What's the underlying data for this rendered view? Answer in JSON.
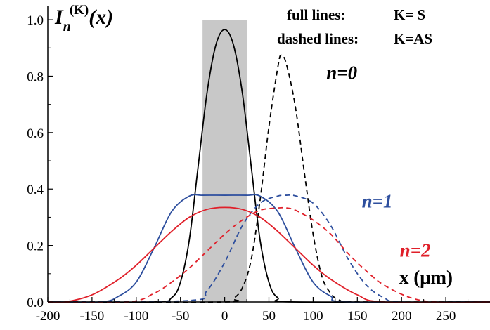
{
  "chart_data": {
    "type": "line",
    "ylabel": {
      "main": "I",
      "sub": "n",
      "sup": "(K)",
      "arg": "(x)"
    },
    "xlabel": "x (μm)",
    "xlim": [
      -200,
      300
    ],
    "ylim": [
      0,
      1.05
    ],
    "xticks": [
      -200,
      -150,
      -100,
      -50,
      0,
      50,
      100,
      150,
      200,
      250
    ],
    "xtick_labels": [
      "-200",
      "-150",
      "-100",
      "-50",
      "0",
      "50",
      "100",
      "150",
      "200",
      "250"
    ],
    "yticks": [
      0,
      0.2,
      0.4,
      0.6,
      0.8,
      1.0
    ],
    "ytick_labels": [
      "0.0",
      "0.2",
      "0.4",
      "0.6",
      "0.8",
      "1.0"
    ],
    "legend": {
      "full_label": "full lines:",
      "full_value": "K= S",
      "dashed_label": "dashed lines:",
      "dashed_value": "K=AS"
    },
    "shaded_region": {
      "x": [
        -25,
        25
      ],
      "color": "#c8c8c8"
    },
    "annotations": [
      {
        "id": "n0",
        "text": "n=0",
        "x": 115,
        "y": 0.79,
        "color": "#000000"
      },
      {
        "id": "n1",
        "text": "n=1",
        "x": 155,
        "y": 0.335,
        "color": "#2e4f9e"
      },
      {
        "id": "n2",
        "text": "n=2",
        "x": 198,
        "y": 0.16,
        "color": "#e0202a"
      }
    ],
    "series": [
      {
        "id": "n0-S",
        "dash": false,
        "color": "#000000",
        "x": [
          -80,
          -60,
          -50,
          -40,
          -30,
          -20,
          -10,
          0,
          10,
          20,
          30,
          40,
          50,
          60,
          80
        ],
        "y": [
          0.0,
          0.015,
          0.07,
          0.22,
          0.48,
          0.74,
          0.91,
          0.965,
          0.91,
          0.74,
          0.48,
          0.22,
          0.07,
          0.015,
          0.0
        ]
      },
      {
        "id": "n0-AS",
        "dash": true,
        "color": "#000000",
        "x": [
          0,
          10,
          20,
          30,
          40,
          50,
          60,
          64,
          70,
          80,
          90,
          100,
          110,
          120,
          130,
          150
        ],
        "y": [
          0.0,
          0.012,
          0.05,
          0.15,
          0.36,
          0.62,
          0.83,
          0.875,
          0.84,
          0.69,
          0.46,
          0.24,
          0.09,
          0.03,
          0.006,
          0.0
        ]
      },
      {
        "id": "n1-S",
        "dash": false,
        "color": "#2e4f9e",
        "x": [
          -140,
          -120,
          -100,
          -80,
          -60,
          -40,
          -25,
          0,
          25,
          40,
          60,
          80,
          100,
          120,
          140
        ],
        "y": [
          0.0,
          0.02,
          0.07,
          0.19,
          0.32,
          0.375,
          0.378,
          0.378,
          0.378,
          0.375,
          0.32,
          0.19,
          0.07,
          0.02,
          0.0
        ]
      },
      {
        "id": "n1-AS",
        "dash": true,
        "color": "#2e4f9e",
        "x": [
          -40,
          -20,
          0,
          20,
          40,
          60,
          70,
          80,
          100,
          120,
          140,
          160,
          180,
          200
        ],
        "y": [
          0.005,
          0.04,
          0.14,
          0.27,
          0.35,
          0.375,
          0.378,
          0.376,
          0.35,
          0.27,
          0.15,
          0.06,
          0.015,
          0.0
        ]
      },
      {
        "id": "n2-S",
        "dash": false,
        "color": "#e0202a",
        "x": [
          -180,
          -150,
          -120,
          -100,
          -80,
          -60,
          -40,
          -20,
          0,
          20,
          40,
          60,
          80,
          100,
          120,
          150,
          180
        ],
        "y": [
          0.0,
          0.025,
          0.08,
          0.13,
          0.19,
          0.25,
          0.3,
          0.328,
          0.335,
          0.328,
          0.3,
          0.25,
          0.19,
          0.13,
          0.08,
          0.025,
          0.0
        ]
      },
      {
        "id": "n2-AS",
        "dash": true,
        "color": "#e0202a",
        "x": [
          -110,
          -80,
          -60,
          -40,
          -20,
          0,
          20,
          40,
          60,
          70,
          80,
          100,
          120,
          140,
          160,
          180,
          210,
          240
        ],
        "y": [
          0.0,
          0.03,
          0.07,
          0.12,
          0.18,
          0.24,
          0.29,
          0.325,
          0.333,
          0.333,
          0.325,
          0.29,
          0.24,
          0.17,
          0.11,
          0.06,
          0.015,
          0.0
        ]
      }
    ]
  }
}
